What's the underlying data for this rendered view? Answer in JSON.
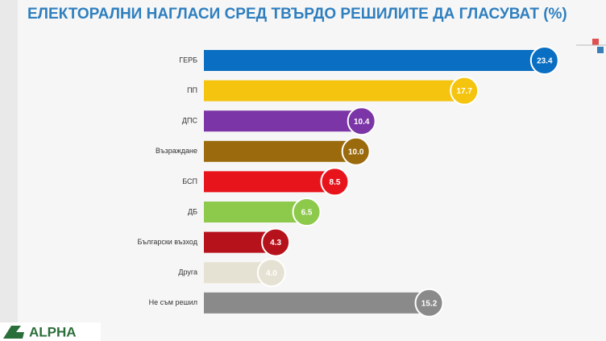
{
  "chart_data": {
    "type": "bar",
    "orientation": "horizontal",
    "title": "ЕЛЕКТОРАЛНИ НАГЛАСИ СРЕД ТВЪРДО РЕШИЛИТЕ ДА ГЛАСУВАТ (%)",
    "categories": [
      "ГЕРБ",
      "ПП",
      "ДПС",
      "Възраждане",
      "БСП",
      "ДБ",
      "Български възход",
      "Друга",
      "Не съм решил"
    ],
    "values": [
      23.4,
      17.7,
      10.4,
      10.0,
      8.5,
      6.5,
      4.3,
      4.0,
      15.2
    ],
    "value_labels": [
      "23.4",
      "17.7",
      "10.4",
      "10.0",
      "8.5",
      "6.5",
      "4.3",
      "4.0",
      "15.2"
    ],
    "colors": [
      "#0a6fc2",
      "#f5c40f",
      "#7b35a6",
      "#9a6a0c",
      "#e8141c",
      "#8dc94a",
      "#b5121b",
      "#e6e2d3",
      "#8a8a8a"
    ]
  },
  "logo": "ALPHA"
}
